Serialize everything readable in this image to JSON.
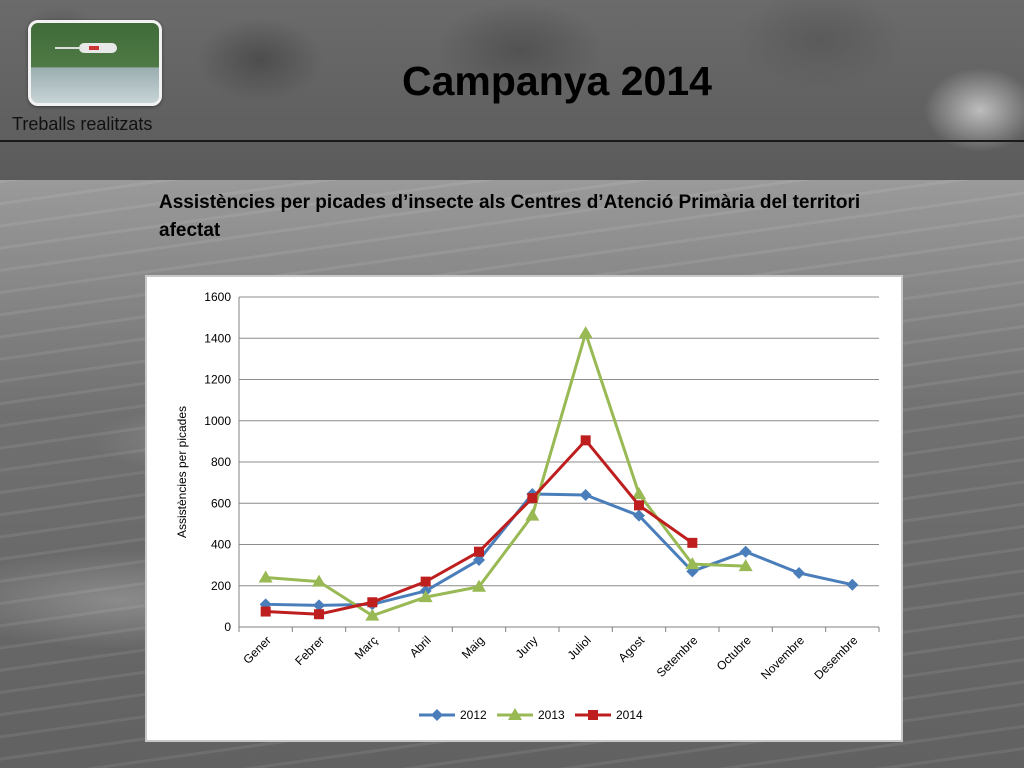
{
  "header": {
    "title": "Campanya 2014",
    "section": "Treballs realitzats",
    "subtitle": "Assistències per picades d’insecte als Centres d’Atenció Primària del territori afectat"
  },
  "colors": {
    "series_2012": "#4a7ebb",
    "series_2013": "#98b954",
    "series_2014": "#be1e1e"
  },
  "chart_data": {
    "type": "line",
    "title": "",
    "xlabel": "",
    "ylabel": "Assistències per picades",
    "ylim": [
      0,
      1600
    ],
    "yticks": [
      "0",
      "200",
      "400",
      "600",
      "800",
      "1000",
      "1200",
      "1400",
      "1600"
    ],
    "grid": true,
    "legend_position": "bottom",
    "categories": [
      "Gener",
      "Febrer",
      "Març",
      "Abril",
      "Maig",
      "Juny",
      "Juliol",
      "Agost",
      "Setembre",
      "Octubre",
      "Novembre",
      "Desembre"
    ],
    "series": [
      {
        "name": "2012",
        "marker": "diamond",
        "values": [
          110,
          105,
          110,
          175,
          325,
          645,
          640,
          540,
          270,
          365,
          262,
          205
        ]
      },
      {
        "name": "2013",
        "marker": "triangle",
        "values": [
          240,
          220,
          55,
          145,
          195,
          540,
          1425,
          645,
          305,
          295,
          null,
          null
        ]
      },
      {
        "name": "2014",
        "marker": "square",
        "values": [
          75,
          62,
          120,
          220,
          365,
          625,
          905,
          590,
          408,
          null,
          null,
          null
        ]
      }
    ]
  }
}
